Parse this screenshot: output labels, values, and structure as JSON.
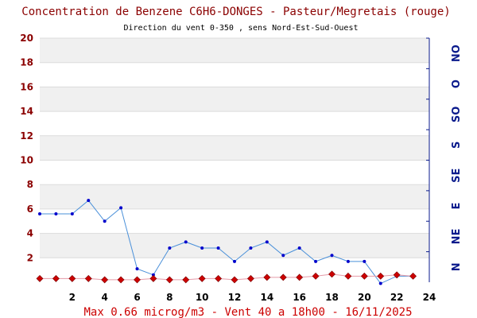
{
  "chart_data": {
    "type": "line",
    "title": "Concentration de Benzene C6H6-DONGES - Pasteur/Megretais (rouge)",
    "subtitle": "Direction du vent 0-350 , sens Nord-Est-Sud-Ouest",
    "footer": "Max 0.66 microg/m3 - Vent 40  a 18h00 - 16/11/2025",
    "x_ticks": [
      "2",
      "4",
      "6",
      "8",
      "10",
      "12",
      "14",
      "16",
      "18",
      "20",
      "22",
      "24"
    ],
    "y_ticks": [
      "2",
      "4",
      "6",
      "8",
      "10",
      "12",
      "14",
      "16",
      "18",
      "20"
    ],
    "xlim": [
      0,
      24
    ],
    "ylim": [
      0,
      20
    ],
    "right_axis_labels": [
      "N",
      "NE",
      "E",
      "SE",
      "S",
      "SO",
      "O",
      "NO"
    ],
    "series": [
      {
        "color": "#cc0000",
        "x": [
          0,
          1,
          2,
          3,
          4,
          5,
          6,
          7,
          8,
          9,
          10,
          11,
          12,
          13,
          14,
          15,
          16,
          17,
          18,
          19,
          20,
          21,
          22,
          23
        ],
        "values": [
          0.3,
          0.3,
          0.3,
          0.3,
          0.2,
          0.2,
          0.2,
          0.3,
          0.2,
          0.2,
          0.3,
          0.3,
          0.2,
          0.3,
          0.4,
          0.4,
          0.4,
          0.5,
          0.66,
          0.5,
          0.5,
          0.5,
          0.6,
          0.5
        ]
      },
      {
        "color": "#4a90d9",
        "x": [
          0,
          1,
          2,
          3,
          4,
          5,
          6,
          7,
          8,
          9,
          10,
          11,
          12,
          13,
          14,
          15,
          16,
          17,
          18,
          19,
          20,
          21,
          22,
          23
        ],
        "values": [
          5.6,
          5.6,
          5.6,
          6.7,
          5.0,
          6.1,
          1.1,
          0.6,
          2.8,
          3.3,
          2.8,
          2.8,
          1.7,
          2.8,
          3.3,
          2.2,
          2.8,
          1.7,
          2.2,
          1.7,
          1.7,
          -0.1,
          0.5,
          0.5
        ]
      }
    ]
  }
}
